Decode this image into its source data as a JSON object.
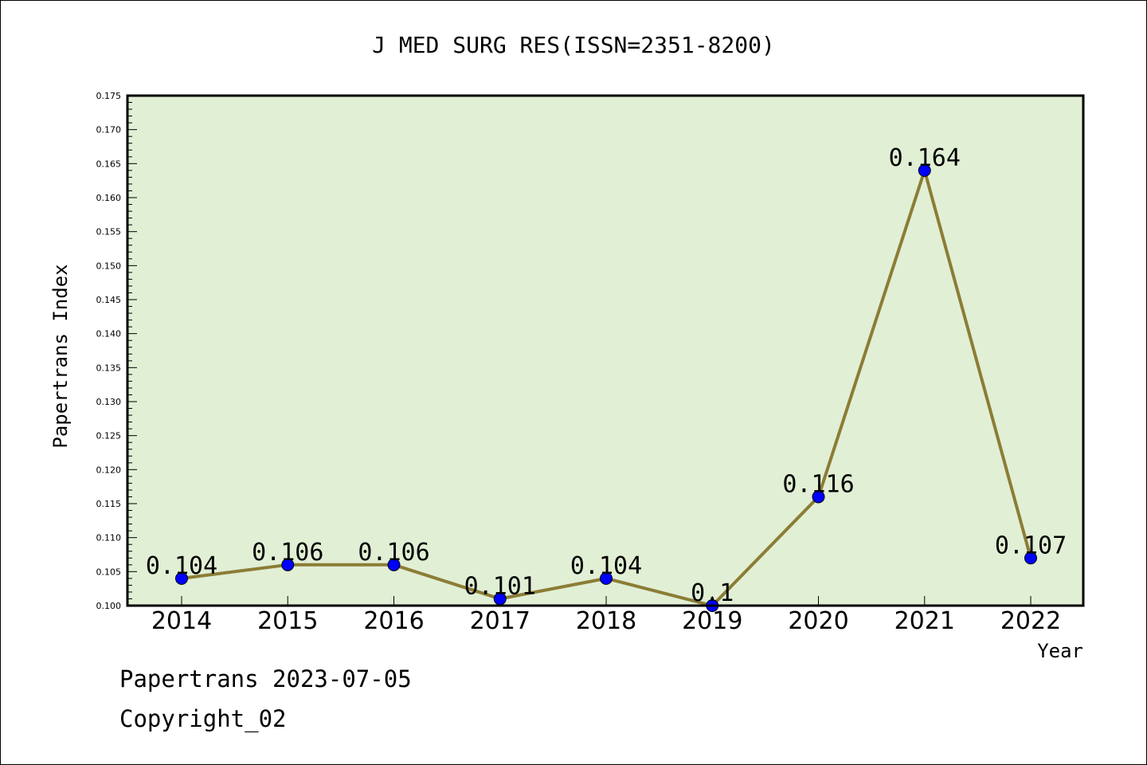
{
  "chart_data": {
    "type": "line",
    "title": "J MED SURG RES(ISSN=2351-8200)",
    "xlabel": "Year",
    "ylabel": "Papertrans Index",
    "categories": [
      "2014",
      "2015",
      "2016",
      "2017",
      "2018",
      "2019",
      "2020",
      "2021",
      "2022"
    ],
    "series": [
      {
        "values": [
          0.104,
          0.106,
          0.106,
          0.101,
          0.104,
          0.1,
          0.116,
          0.164,
          0.107
        ],
        "data_labels": [
          "0.104",
          "0.106",
          "0.106",
          "0.101",
          "0.104",
          "0.1",
          "0.116",
          "0.164",
          "0.107"
        ]
      }
    ],
    "ylim": [
      0.1,
      0.175
    ],
    "yticks": [
      "0.100",
      "0.105",
      "0.110",
      "0.115",
      "0.120",
      "0.125",
      "0.130",
      "0.135",
      "0.140",
      "0.145",
      "0.150",
      "0.155",
      "0.160",
      "0.165",
      "0.170",
      "0.175"
    ],
    "grid": false,
    "legend": "none",
    "colors": {
      "plot_background": "#e1efd5",
      "line": "#8b7d35",
      "marker": "#0000ff"
    }
  },
  "footer": {
    "line1": "Papertrans 2023-07-05",
    "line2": "Copyright_02"
  }
}
